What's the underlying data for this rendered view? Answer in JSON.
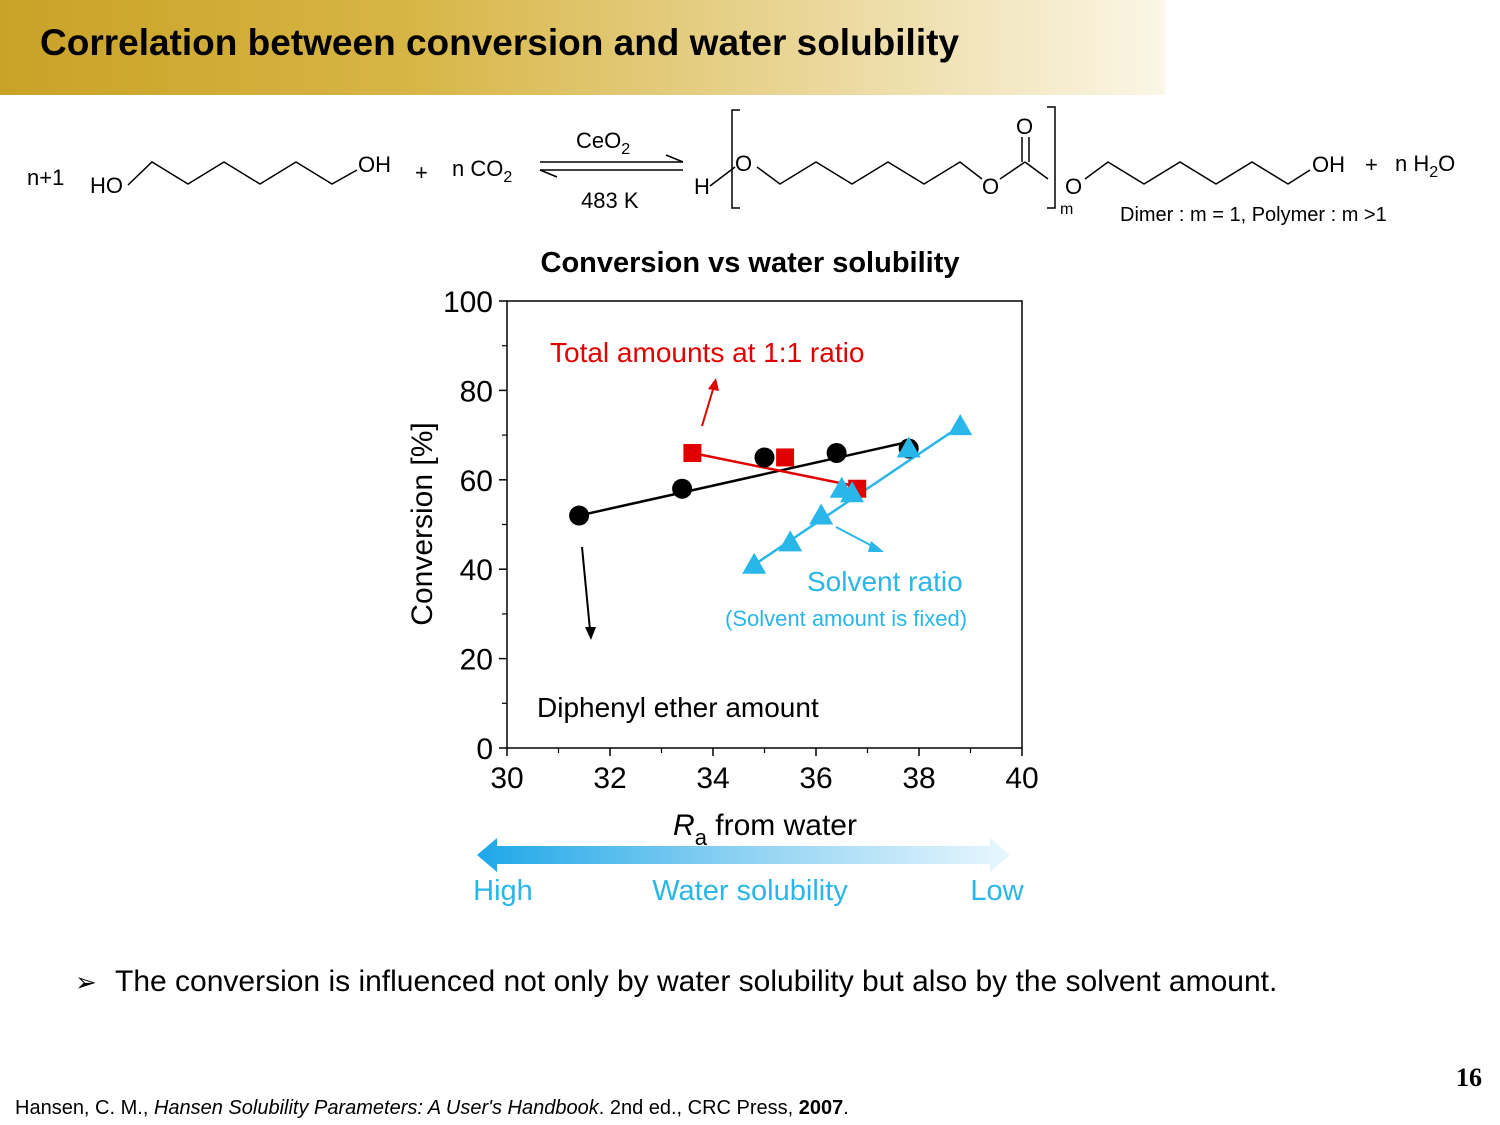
{
  "header": {
    "title": "Correlation between conversion and water solubility"
  },
  "reaction": {
    "coef1": "n+1",
    "ho": "HO",
    "oh": "OH",
    "plus1": "+",
    "n_co2_n": "n CO",
    "two": "2",
    "catalyst": "CeO",
    "cat_sub": "2",
    "temperature": "483 K",
    "h_end": "H",
    "o1": "O",
    "o_carbonyl": "O",
    "o2": "O",
    "o3": "O",
    "m": "m",
    "oh_end": "OH",
    "plus2": "+",
    "n_h2o_n": "n H",
    "h2o_sub": "2",
    "h2o_o": "O",
    "note": "Dimer : m = 1, Polymer : m >1"
  },
  "chart_data": {
    "type": "scatter",
    "title": "Conversion vs water solubility",
    "xlabel_italic": "R",
    "xlabel_sub": "a",
    "xlabel_rest": " from water",
    "ylabel": "Conversion [%]",
    "xlim": [
      30,
      40
    ],
    "ylim": [
      0,
      100
    ],
    "xticks": [
      30,
      32,
      34,
      36,
      38,
      40
    ],
    "yticks": [
      0,
      20,
      40,
      60,
      80,
      100
    ],
    "series": [
      {
        "key": "diphenyl",
        "color": "#000000",
        "marker": "circle",
        "x": [
          31.4,
          33.4,
          35.0,
          36.4,
          37.8
        ],
        "y": [
          52,
          58,
          65,
          66,
          67
        ],
        "fit": [
          [
            31.4,
            52
          ],
          [
            37.8,
            68.5
          ]
        ]
      },
      {
        "key": "total",
        "color": "#e00000",
        "marker": "square",
        "x": [
          33.6,
          35.4,
          36.8
        ],
        "y": [
          66,
          65,
          58
        ],
        "fit": [
          [
            33.6,
            66
          ],
          [
            36.8,
            58.5
          ]
        ]
      },
      {
        "key": "solvent",
        "color": "#29b6e8",
        "marker": "triangle",
        "x": [
          34.8,
          35.5,
          36.1,
          36.5,
          36.7,
          37.8,
          38.8
        ],
        "y": [
          41,
          46,
          52,
          58,
          57,
          67,
          72
        ],
        "fit": [
          [
            34.8,
            41
          ],
          [
            38.8,
            72
          ]
        ]
      }
    ],
    "annotations": {
      "total_label": "Total amounts at 1:1 ratio",
      "solvent_label": "Solvent ratio",
      "solvent_sub": "(Solvent amount is fixed)",
      "diphenyl_label": "Diphenyl ether amount"
    }
  },
  "solubility_scale": {
    "high": "High",
    "label": "Water solubility",
    "low": "Low"
  },
  "bullet": {
    "marker": "➢",
    "text": "The conversion is influenced not only by water solubility but also by the solvent amount."
  },
  "page_number": "16",
  "reference": {
    "authors": "Hansen, C. M., ",
    "book": "Hansen Solubility Parameters: A User's Handbook",
    "details": ". 2nd ed., CRC Press, ",
    "year": "2007",
    "end": "."
  }
}
